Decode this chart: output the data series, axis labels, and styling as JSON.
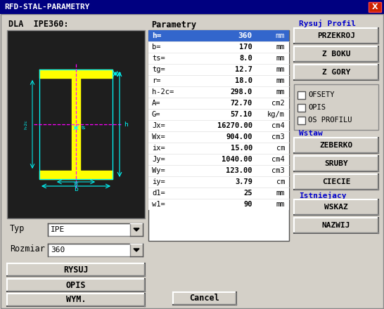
{
  "title": "RFD-STAL-PARAMETRY",
  "title_bar_color": "#000080",
  "title_bar_text_color": "#ffffff",
  "bg_color": "#d4d0c8",
  "dialog_label": "DLA  IPE360:",
  "params_label": "Parametry",
  "params_header_bg": "#3366cc",
  "params_header_text": "#ffffff",
  "params_data": [
    [
      "h=",
      "360",
      "mm"
    ],
    [
      "b=",
      "170",
      "mm"
    ],
    [
      "ts=",
      "8.0",
      "mm"
    ],
    [
      "tg=",
      "12.7",
      "mm"
    ],
    [
      "r=",
      "18.0",
      "mm"
    ],
    [
      "h-2c=",
      "298.0",
      "mm"
    ],
    [
      "A=",
      "72.70",
      "cm2"
    ],
    [
      "G=",
      "57.10",
      "kg/m"
    ],
    [
      "Jx=",
      "16270.00",
      "cm4"
    ],
    [
      "Wx=",
      "904.00",
      "cm3"
    ],
    [
      "ix=",
      "15.00",
      "cm"
    ],
    [
      "Jy=",
      "1040.00",
      "cm4"
    ],
    [
      "Wy=",
      "123.00",
      "cm3"
    ],
    [
      "iy=",
      "3.79",
      "cm"
    ],
    [
      "d1=",
      "25",
      "mm"
    ],
    [
      "w1=",
      "90",
      "mm"
    ]
  ],
  "right_section_label1": "Rysuj Profil",
  "right_buttons": [
    "PRZEKROJ",
    "Z BOKU",
    "Z GORY"
  ],
  "checkboxes": [
    "OFSETY",
    "OPIS",
    "OS PROFILU"
  ],
  "right_section_label2": "Wstaw",
  "insert_buttons": [
    "ZEBERKO",
    "SRUBY",
    "CIECIE"
  ],
  "right_section_label3": "Istniejacy",
  "existing_buttons": [
    "WSKAZ",
    "NAZWIJ"
  ],
  "left_bottom_buttons": [
    "RYSUJ",
    "OPIS",
    "WYM."
  ],
  "cancel_button": "Cancel",
  "typ_label": "Typ",
  "typ_value": "IPE",
  "rozmiar_label": "Rozmiar",
  "rozmiar_value": "360",
  "canvas_bg": "#1e1e1e",
  "x_button_color": "#cc0000",
  "cyan": "#00ffff",
  "yellow": "#ffff00",
  "magenta": "#ff00ff"
}
